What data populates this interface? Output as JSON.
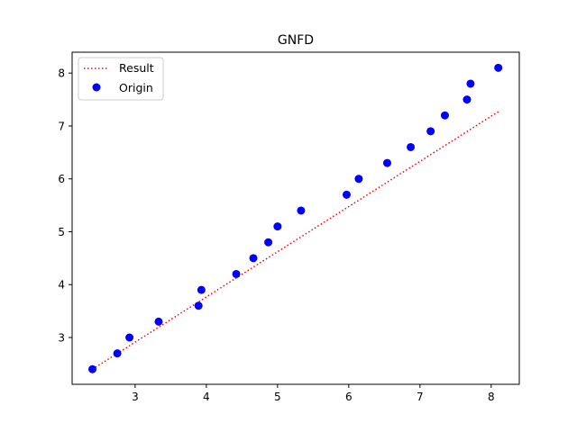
{
  "chart_data": {
    "type": "scatter",
    "title": "GNFD",
    "xlabel": "",
    "ylabel": "",
    "xlim": [
      2.115,
      8.395
    ],
    "ylim": [
      2.115,
      8.395
    ],
    "grid": false,
    "legend_position": "top-left",
    "x_ticks": [
      3,
      4,
      5,
      6,
      7,
      8
    ],
    "y_ticks": [
      3,
      4,
      5,
      6,
      7,
      8
    ],
    "x_tick_labels": [
      "3",
      "4",
      "5",
      "6",
      "7",
      "8"
    ],
    "y_tick_labels": [
      "3",
      "4",
      "5",
      "6",
      "7",
      "8"
    ],
    "series": [
      {
        "name": "Result",
        "kind": "line",
        "style": "dotted",
        "color": "#ff0000",
        "x": [
          2.4,
          8.1
        ],
        "y": [
          2.4,
          7.27
        ]
      },
      {
        "name": "Origin",
        "kind": "scatter",
        "color": "#0000ff",
        "x": [
          2.4,
          2.75,
          2.92,
          3.33,
          3.89,
          3.93,
          4.42,
          4.66,
          4.87,
          5.0,
          5.33,
          5.97,
          6.14,
          6.54,
          6.87,
          7.15,
          7.35,
          7.66,
          7.71,
          8.1
        ],
        "y": [
          2.4,
          2.7,
          3.0,
          3.3,
          3.6,
          3.9,
          4.2,
          4.5,
          4.8,
          5.1,
          5.4,
          5.7,
          6.0,
          6.3,
          6.6,
          6.9,
          7.2,
          7.5,
          7.8,
          8.1
        ]
      }
    ]
  }
}
